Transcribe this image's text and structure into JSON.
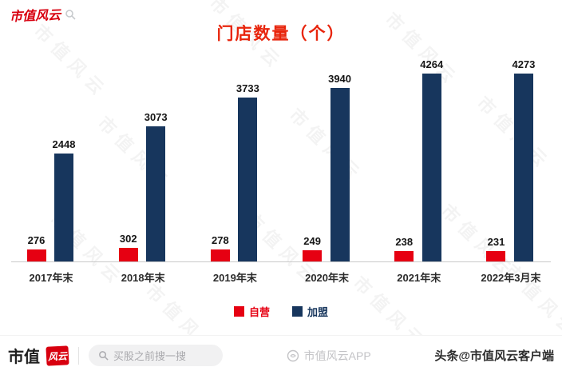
{
  "header": {
    "brand_text": "市值风云"
  },
  "watermark": {
    "text": "市值风云"
  },
  "chart_data": {
    "type": "bar",
    "title": "门店数量（个）",
    "categories": [
      "2017年末",
      "2018年末",
      "2019年末",
      "2020年末",
      "2021年末",
      "2022年3月末"
    ],
    "series": [
      {
        "name": "自营",
        "color": "#e60012",
        "values": [
          276,
          302,
          278,
          249,
          238,
          231
        ]
      },
      {
        "name": "加盟",
        "color": "#17365d",
        "values": [
          2448,
          3073,
          3733,
          3940,
          4264,
          4273
        ]
      }
    ],
    "xlabel": "",
    "ylabel": "",
    "ylim": [
      0,
      4500
    ],
    "grid": false,
    "legend_position": "bottom"
  },
  "footer": {
    "brand_text": "市值",
    "brand_seal": "风云",
    "search_placeholder": "买股之前搜一搜",
    "center_watermark": "市值风云APP",
    "right_text": "头条@市值风云客户端"
  }
}
